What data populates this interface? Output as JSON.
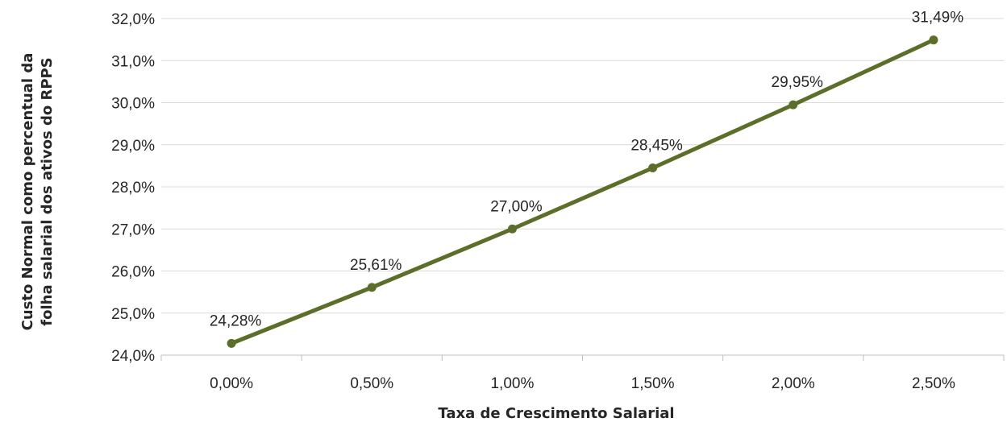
{
  "chart_data": {
    "type": "line",
    "title": "",
    "xlabel": "Taxa de Crescimento Salarial",
    "ylabel_lines": [
      "Custo Normal como percentual da",
      "folha salarial dos ativos do RPPS"
    ],
    "categories": [
      "0,00%",
      "0,50%",
      "1,00%",
      "1,50%",
      "2,00%",
      "2,50%"
    ],
    "series": [
      {
        "values": [
          24.28,
          25.61,
          27.0,
          28.45,
          29.95,
          31.49
        ],
        "labels": [
          "24,28%",
          "25,61%",
          "27,00%",
          "28,45%",
          "29,95%",
          "31,49%"
        ]
      }
    ],
    "ylim": [
      24,
      32
    ],
    "yticks": [
      24,
      25,
      26,
      27,
      28,
      29,
      30,
      31,
      32
    ],
    "ytick_labels": [
      "24,0%",
      "25,0%",
      "26,0%",
      "27,0%",
      "28,0%",
      "29,0%",
      "30,0%",
      "31,0%",
      "32,0%"
    ],
    "grid": "horizontal",
    "legend": "none",
    "colors": {
      "line": "#5b6f2a",
      "grid": "#d9d9d9",
      "axis": "#bfbfbf",
      "text": "#262626"
    }
  }
}
